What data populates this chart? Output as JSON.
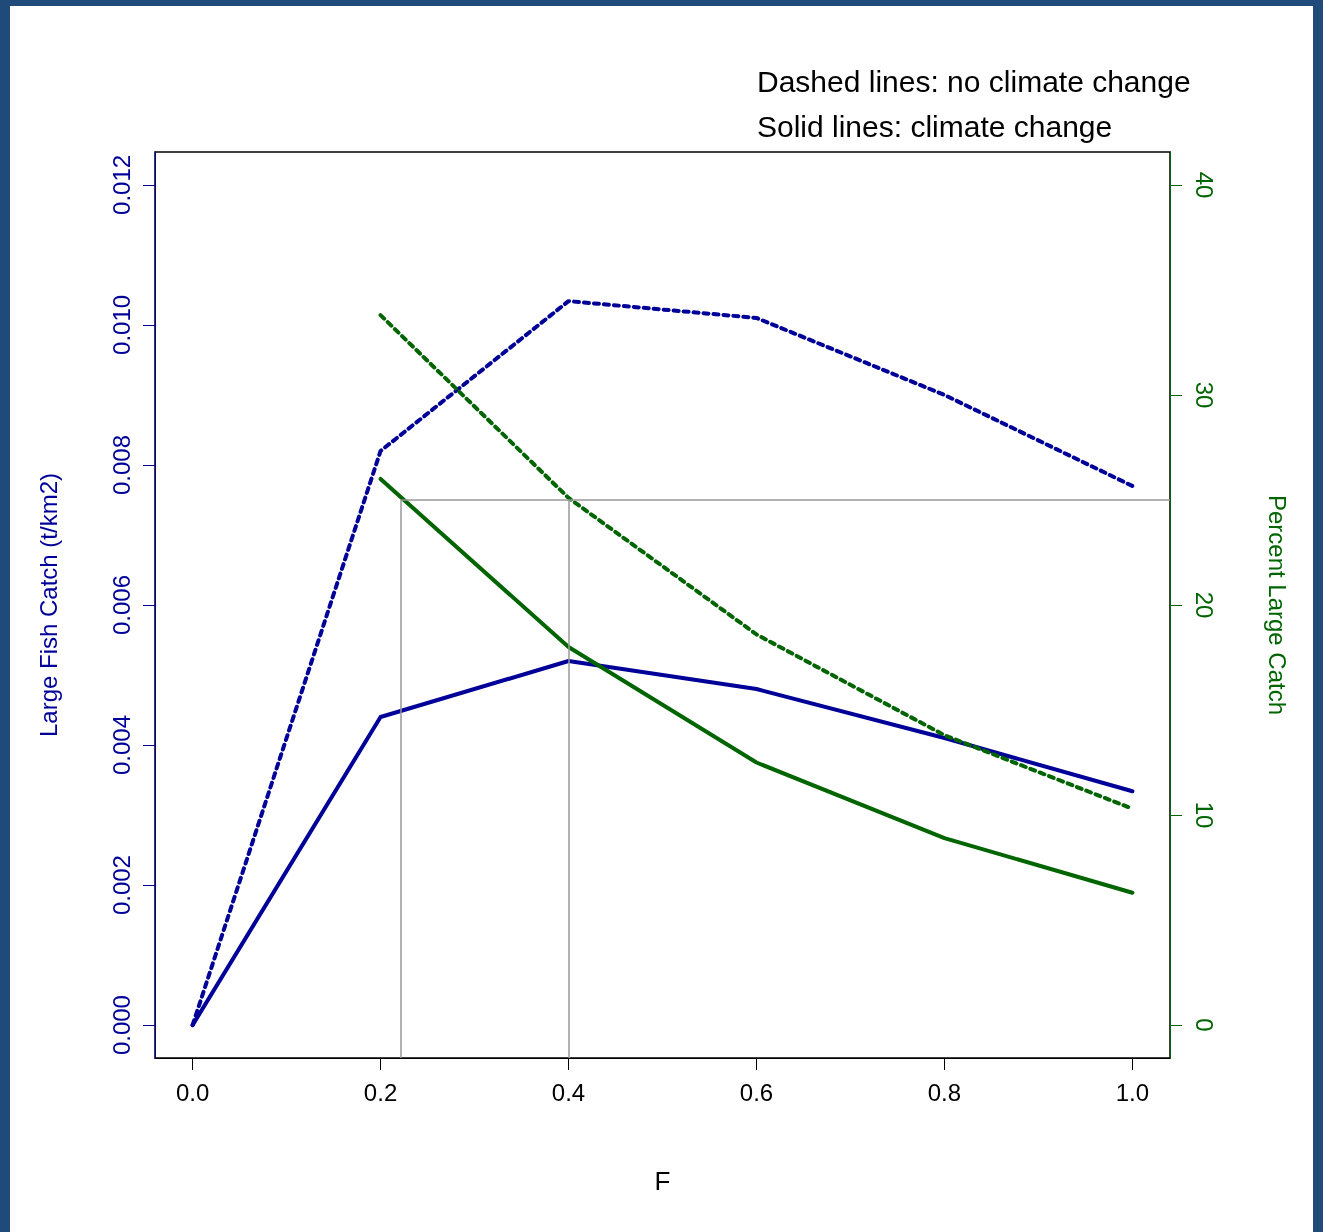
{
  "chart_data": {
    "type": "line",
    "xlabel": "F",
    "ylabel": "Large Fish Catch (t/km2)",
    "y2label": "Percent Large Catch",
    "annotations": [
      "Dashed lines: no climate change",
      "Solid lines: climate change"
    ],
    "x": [
      0,
      0.2,
      0.4,
      0.6,
      0.8,
      1.0
    ],
    "series": [
      {
        "color": "#000099",
        "line_style": "solid",
        "values": [
          0,
          0.0044,
          0.0052,
          0.0048,
          0.0041,
          0.00334
        ]
      },
      {
        "color": "#000099",
        "line_style": "dashed",
        "values": [
          0,
          0.0082,
          0.01034,
          0.0101,
          0.009,
          0.0077
        ]
      },
      {
        "color": "#006400",
        "line_style": "solid",
        "axis": "y2",
        "x": [
          0.2,
          0.4,
          0.6,
          0.8,
          1.0
        ],
        "values": [
          26,
          18,
          12.5,
          8.9,
          6.3
        ]
      },
      {
        "color": "#006400",
        "line_style": "dashed",
        "axis": "y2",
        "x": [
          0.2,
          0.4,
          0.6,
          0.8,
          1.0
        ],
        "values": [
          33.8,
          25.1,
          18.6,
          13.8,
          10.3
        ]
      }
    ],
    "xlim": [
      -0.04,
      1.04
    ],
    "xticks": [
      {
        "value": 0,
        "label": "0.0"
      },
      {
        "value": 0.2,
        "label": "0.2"
      },
      {
        "value": 0.4,
        "label": "0.4"
      },
      {
        "value": 0.6,
        "label": "0.6"
      },
      {
        "value": 0.8,
        "label": "0.8"
      },
      {
        "value": 1,
        "label": "1.0"
      }
    ],
    "ylim": [
      -0.00047,
      0.01247
    ],
    "yticks": [
      {
        "value": 0,
        "label": "0.000"
      },
      {
        "value": 0.002,
        "label": "0.002"
      },
      {
        "value": 0.004,
        "label": "0.004"
      },
      {
        "value": 0.006,
        "label": "0.006"
      },
      {
        "value": 0.008,
        "label": "0.008"
      },
      {
        "value": 0.01,
        "label": "0.010"
      },
      {
        "value": 0.012,
        "label": "0.012"
      }
    ],
    "y2lim": [
      -1.57,
      41.57
    ],
    "y2ticks": [
      0,
      10,
      20,
      30,
      40
    ],
    "ref_lines": [
      {
        "axis": "x",
        "value": 0.222,
        "color": "#999999"
      },
      {
        "axis": "x",
        "value": 0.4,
        "color": "#999999"
      },
      {
        "axis": "y2",
        "value": 25,
        "color": "#999999"
      }
    ],
    "grid": false,
    "marker": "none"
  }
}
